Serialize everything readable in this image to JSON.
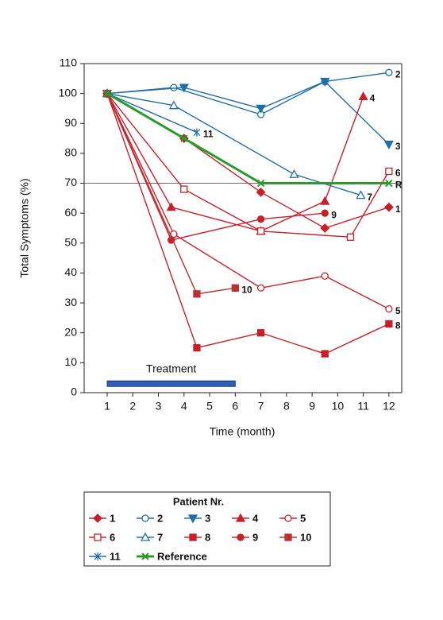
{
  "chart_data": {
    "type": "line",
    "y_label": "Total Symptoms (%)",
    "x_label": "Time (month)",
    "xlim": [
      0.1,
      12.5
    ],
    "ylim": [
      0,
      110
    ],
    "xticks": [
      1,
      2,
      3,
      4,
      5,
      6,
      7,
      8,
      9,
      10,
      11,
      12
    ],
    "yticks": [
      0,
      10,
      20,
      30,
      40,
      50,
      60,
      70,
      80,
      90,
      100,
      110
    ],
    "grid": false,
    "reference_line": 70,
    "treatment": {
      "label": "Treatment",
      "x": [
        1,
        6
      ],
      "y": 3
    },
    "legend_title": "Patient Nr.",
    "series": [
      {
        "name": "1",
        "color": "#c8202a",
        "marker": "diamond",
        "filled": true,
        "x": [
          1,
          4,
          7,
          9.5,
          12
        ],
        "values": [
          100,
          85,
          67,
          55,
          62
        ]
      },
      {
        "name": "2",
        "color": "#1f6fa8",
        "marker": "circle",
        "filled": false,
        "x": [
          1,
          3.6,
          7,
          9.5,
          12
        ],
        "values": [
          100,
          102,
          93,
          104,
          107
        ]
      },
      {
        "name": "3",
        "color": "#1f6fa8",
        "marker": "tri-down",
        "filled": true,
        "x": [
          1,
          4,
          7,
          9.5,
          12
        ],
        "values": [
          100,
          102,
          95,
          104,
          83
        ]
      },
      {
        "name": "4",
        "color": "#c8202a",
        "marker": "tri-up",
        "filled": true,
        "x": [
          1,
          3.5,
          7,
          9.5,
          11
        ],
        "values": [
          100,
          62,
          54,
          64,
          99
        ]
      },
      {
        "name": "5",
        "color": "#c8202a",
        "marker": "circle",
        "filled": false,
        "x": [
          1,
          3.6,
          7,
          9.5,
          12
        ],
        "values": [
          100,
          53,
          35,
          39,
          28
        ]
      },
      {
        "name": "6",
        "color": "#c8202a",
        "marker": "square",
        "filled": false,
        "x": [
          1,
          4,
          7,
          10.5,
          12
        ],
        "values": [
          100,
          68,
          54,
          52,
          74
        ]
      },
      {
        "name": "7",
        "color": "#1f6fa8",
        "marker": "tri-up",
        "filled": false,
        "x": [
          1,
          3.6,
          8.3,
          10.9
        ],
        "values": [
          100,
          96,
          73,
          66
        ]
      },
      {
        "name": "8",
        "color": "#c8202a",
        "marker": "square",
        "filled": true,
        "x": [
          1,
          4.5,
          7,
          9.5,
          12
        ],
        "values": [
          100,
          15,
          20,
          13,
          23
        ]
      },
      {
        "name": "9",
        "color": "#c8202a",
        "marker": "circle",
        "filled": true,
        "x": [
          1,
          3.5,
          7,
          9.5
        ],
        "values": [
          100,
          51,
          58,
          60
        ]
      },
      {
        "name": "10",
        "color": "#b83030",
        "marker": "square",
        "filled": true,
        "x": [
          1,
          4.5,
          6
        ],
        "values": [
          100,
          33,
          35
        ]
      },
      {
        "name": "11",
        "color": "#1f6fa8",
        "marker": "asterisk",
        "filled": false,
        "x": [
          1,
          4.5
        ],
        "values": [
          100,
          87
        ]
      },
      {
        "name": "Reference",
        "end_label": "R",
        "color": "#2a9a2a",
        "marker": "x",
        "filled": false,
        "width": 3,
        "x": [
          1,
          4,
          7,
          12
        ],
        "values": [
          100,
          85,
          70,
          70
        ]
      }
    ]
  }
}
